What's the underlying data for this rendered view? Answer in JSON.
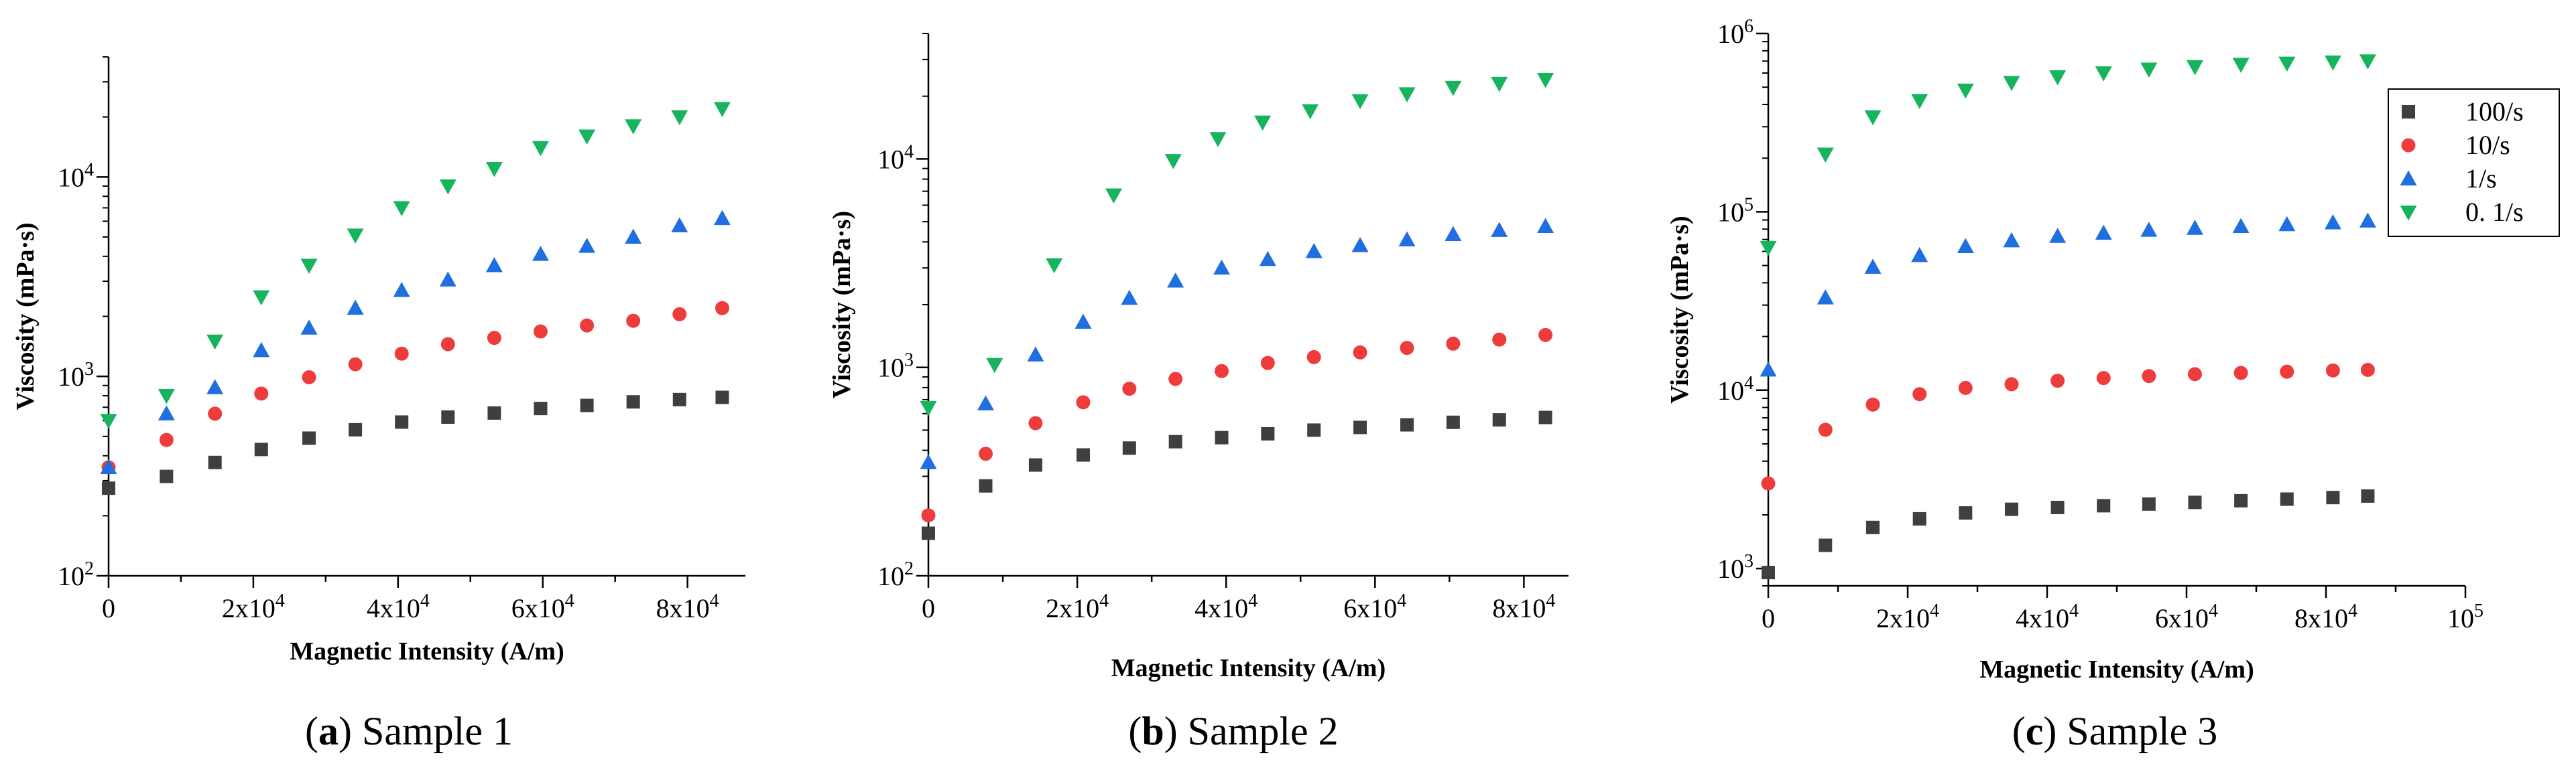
{
  "figure": {
    "legend": [
      {
        "label": "100/s",
        "color": "#3f3f3f",
        "marker": "square"
      },
      {
        "label": "10/s",
        "color": "#ee3c3c",
        "marker": "circle"
      },
      {
        "label": "1/s",
        "color": "#1f6fe0",
        "marker": "triangle-up"
      },
      {
        "label": "0. 1/s",
        "color": "#16b45c",
        "marker": "triangle-down"
      }
    ]
  },
  "chart_data": [
    {
      "type": "scatter",
      "caption_letter": "a",
      "caption_rest": ") Sample 1",
      "caption_open": "(",
      "xlabel": "Magnetic Intensity (A/m)",
      "ylabel": "Viscosity (mPa·s)",
      "yscale": "log",
      "xlim": [
        0,
        88000
      ],
      "ylim": [
        100,
        40000
      ],
      "x_ticks": [
        {
          "value": 0,
          "base": "0",
          "exp": ""
        },
        {
          "value": 20000,
          "base": "2x10",
          "exp": "4"
        },
        {
          "value": 40000,
          "base": "4x10",
          "exp": "4"
        },
        {
          "value": 60000,
          "base": "6x10",
          "exp": "4"
        },
        {
          "value": 80000,
          "base": "8x10",
          "exp": "4"
        }
      ],
      "y_ticks": [
        {
          "value": 100,
          "base": "10",
          "exp": "2"
        },
        {
          "value": 1000,
          "base": "10",
          "exp": "3"
        },
        {
          "value": 10000,
          "base": "10",
          "exp": "4"
        }
      ],
      "series": [
        {
          "name": "100/s",
          "x": [
            0,
            8000,
            14700,
            21100,
            27700,
            34100,
            40500,
            46900,
            53300,
            59700,
            66100,
            72500,
            78900,
            84800
          ],
          "values": [
            275,
            315,
            370,
            430,
            490,
            540,
            590,
            625,
            655,
            690,
            715,
            745,
            765,
            785
          ]
        },
        {
          "name": "10/s",
          "x": [
            0,
            8000,
            14700,
            21100,
            27700,
            34100,
            40500,
            46900,
            53300,
            59700,
            66100,
            72500,
            78900,
            84800
          ],
          "values": [
            350,
            480,
            650,
            820,
            990,
            1150,
            1300,
            1450,
            1560,
            1680,
            1800,
            1900,
            2050,
            2200
          ]
        },
        {
          "name": "1/s",
          "x": [
            0,
            8000,
            14700,
            21100,
            27700,
            34100,
            40500,
            46900,
            53300,
            59700,
            66100,
            72500,
            78900,
            84800
          ],
          "values": [
            350,
            650,
            880,
            1350,
            1750,
            2200,
            2700,
            3050,
            3600,
            4100,
            4500,
            5000,
            5700,
            6200
          ]
        },
        {
          "name": "0. 1/s",
          "x": [
            0,
            8000,
            14700,
            21100,
            27700,
            34100,
            40500,
            46900,
            53300,
            59700,
            66100,
            72500,
            78900,
            84800
          ],
          "values": [
            600,
            800,
            1500,
            2500,
            3600,
            5100,
            7000,
            9000,
            11000,
            14000,
            16000,
            18000,
            20000,
            22000
          ]
        }
      ]
    },
    {
      "type": "scatter",
      "caption_letter": "b",
      "caption_rest": ") Sample 2",
      "caption_open": "(",
      "xlabel": "Magnetic Intensity (A/m)",
      "ylabel": "Viscosity (mPa·s)",
      "yscale": "log",
      "xlim": [
        0,
        86000
      ],
      "ylim": [
        100,
        40000
      ],
      "x_ticks": [
        {
          "value": 0,
          "base": "0",
          "exp": ""
        },
        {
          "value": 20000,
          "base": "2x10",
          "exp": "4"
        },
        {
          "value": 40000,
          "base": "4x10",
          "exp": "4"
        },
        {
          "value": 60000,
          "base": "6x10",
          "exp": "4"
        },
        {
          "value": 80000,
          "base": "8x10",
          "exp": "4"
        }
      ],
      "y_ticks": [
        {
          "value": 100,
          "base": "10",
          "exp": "2"
        },
        {
          "value": 1000,
          "base": "10",
          "exp": "3"
        },
        {
          "value": 10000,
          "base": "10",
          "exp": "4"
        }
      ],
      "series": [
        {
          "name": "100/s",
          "x": [
            0,
            7700,
            14400,
            20800,
            27000,
            33200,
            39400,
            45600,
            51800,
            58000,
            64300,
            70500,
            76700,
            82900
          ],
          "values": [
            160,
            270,
            340,
            380,
            410,
            440,
            460,
            480,
            500,
            515,
            530,
            545,
            560,
            575
          ]
        },
        {
          "name": "10/s",
          "x": [
            0,
            7700,
            14400,
            20800,
            27000,
            33200,
            39400,
            45600,
            51800,
            58000,
            64300,
            70500,
            76700,
            82900
          ],
          "values": [
            195,
            385,
            540,
            680,
            790,
            880,
            960,
            1050,
            1120,
            1180,
            1240,
            1300,
            1360,
            1430
          ]
        },
        {
          "name": "1/s",
          "x": [
            0,
            7700,
            14400,
            20800,
            27000,
            33200,
            39400,
            45600,
            51800,
            58000,
            64300,
            70500,
            76700,
            82900
          ],
          "values": [
            350,
            670,
            1150,
            1650,
            2150,
            2600,
            3000,
            3300,
            3600,
            3850,
            4100,
            4350,
            4550,
            4750
          ]
        },
        {
          "name": "0. 1/s",
          "x": [
            0,
            8900,
            16900,
            24900,
            32900,
            38900,
            44900,
            51300,
            58000,
            64300,
            70500,
            76700,
            82900
          ],
          "values": [
            640,
            1030,
            3100,
            6700,
            9800,
            12500,
            15000,
            17000,
            19000,
            20500,
            22000,
            23000,
            24000
          ]
        }
      ]
    },
    {
      "type": "scatter",
      "caption_letter": "c",
      "caption_rest": ") Sample 3",
      "caption_open": "(",
      "xlabel": "Magnetic Intensity (A/m)",
      "ylabel": "Viscosity (mPa·s)",
      "yscale": "log",
      "xlim": [
        0,
        100000
      ],
      "ylim": [
        800,
        1000000
      ],
      "x_ticks": [
        {
          "value": 0,
          "base": "0",
          "exp": ""
        },
        {
          "value": 20000,
          "base": "2x10",
          "exp": "4"
        },
        {
          "value": 40000,
          "base": "4x10",
          "exp": "4"
        },
        {
          "value": 60000,
          "base": "6x10",
          "exp": "4"
        },
        {
          "value": 80000,
          "base": "8x10",
          "exp": "4"
        },
        {
          "value": 100000,
          "base": "10",
          "exp": "5"
        }
      ],
      "y_ticks": [
        {
          "value": 1000,
          "base": "10",
          "exp": "3"
        },
        {
          "value": 10000,
          "base": "10",
          "exp": "4"
        },
        {
          "value": 100000,
          "base": "10",
          "exp": "5"
        },
        {
          "value": 1000000,
          "base": "10",
          "exp": "6"
        }
      ],
      "legend_position": "top-right",
      "series": [
        {
          "name": "100/s",
          "x": [
            0,
            8200,
            15000,
            21700,
            28300,
            34900,
            41500,
            48100,
            54600,
            61200,
            67800,
            74400,
            81000,
            86000
          ],
          "values": [
            950,
            1350,
            1700,
            1900,
            2050,
            2150,
            2200,
            2250,
            2300,
            2350,
            2400,
            2450,
            2500,
            2550
          ]
        },
        {
          "name": "10/s",
          "x": [
            0,
            8200,
            15000,
            21700,
            28300,
            34900,
            41500,
            48100,
            54600,
            61200,
            67800,
            74400,
            81000,
            86000
          ],
          "values": [
            3000,
            6000,
            8300,
            9500,
            10300,
            10800,
            11300,
            11700,
            12000,
            12300,
            12500,
            12700,
            12900,
            13000
          ]
        },
        {
          "name": "1/s",
          "x": [
            0,
            8200,
            15000,
            21700,
            28300,
            34900,
            41500,
            48100,
            54600,
            61200,
            67800,
            74400,
            81000,
            86000
          ],
          "values": [
            13000,
            33000,
            49000,
            57000,
            64000,
            69000,
            73000,
            76000,
            79000,
            81000,
            83000,
            85000,
            87000,
            89000
          ]
        },
        {
          "name": "0. 1/s",
          "x": [
            0,
            8200,
            15000,
            21700,
            28300,
            34900,
            41500,
            48100,
            54600,
            61200,
            67800,
            74400,
            81000,
            86000
          ],
          "values": [
            63000,
            210000,
            340000,
            420000,
            480000,
            530000,
            570000,
            600000,
            630000,
            650000,
            670000,
            680000,
            690000,
            700000
          ]
        }
      ]
    }
  ]
}
